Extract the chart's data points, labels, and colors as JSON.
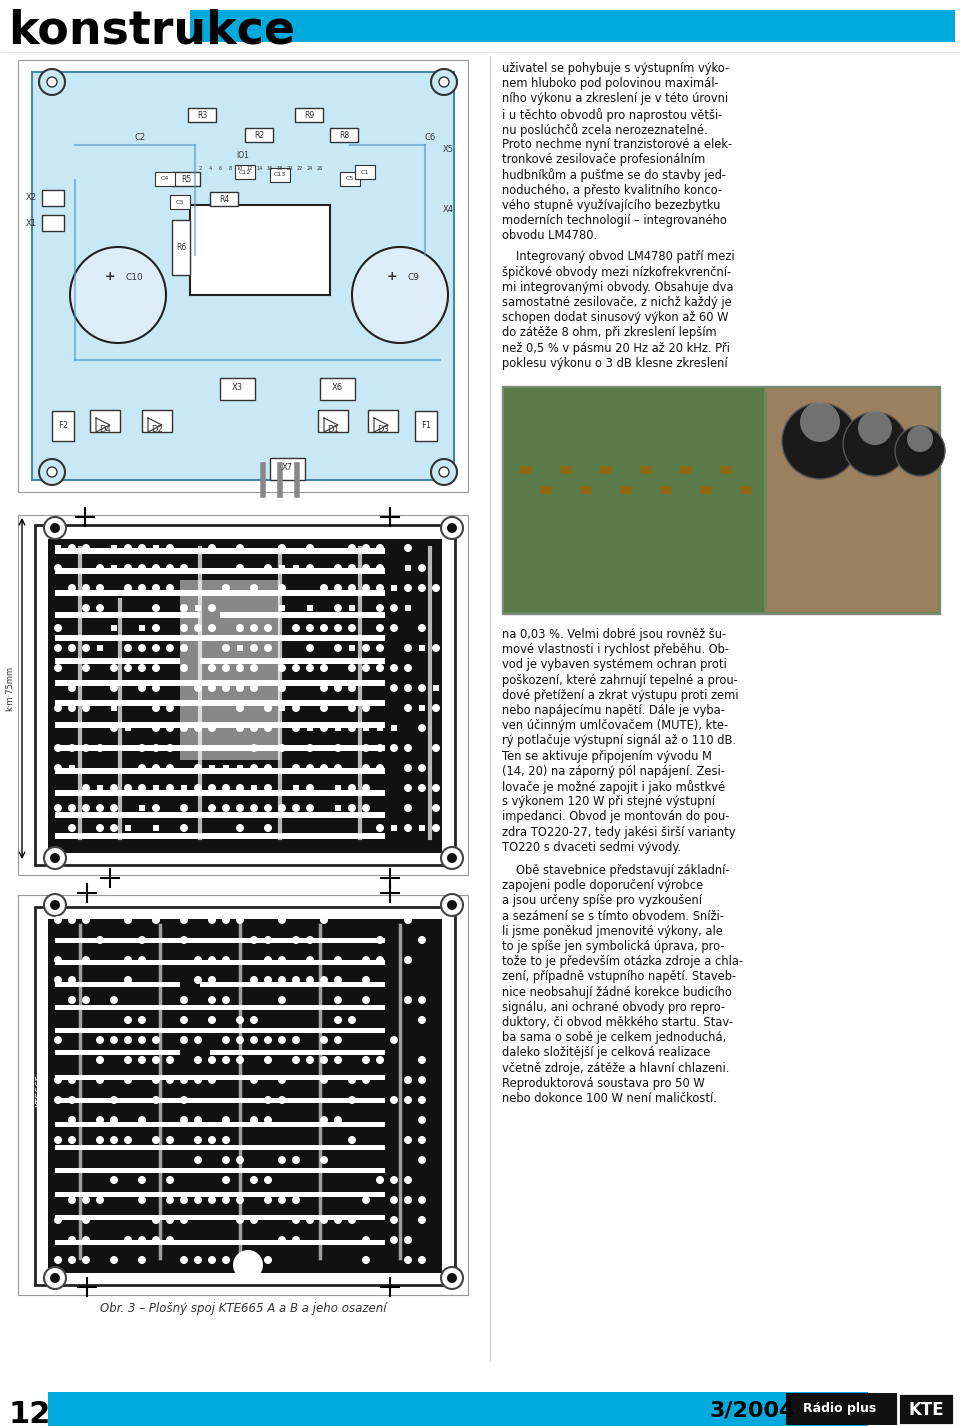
{
  "page_width": 9.6,
  "page_height": 14.26,
  "bg_color": "#ffffff",
  "header_bar_color": "#00aadd",
  "header_text": "konstrukce",
  "header_text_color": "#000000",
  "footer_bar_color": "#00aadd",
  "footer_left_num": "12",
  "footer_right_date": "3/2004",
  "footer_brand1": "Rádio plus",
  "footer_brand2": "KTE",
  "right_text_top": [
    "uživatel se pohybuje s výstupním výko-",
    "nem hluboko pod polovinou maximál-",
    "ního výkonu a zkreslení je v této úrovni",
    "i u těchto obvodů pro naprostou větši-",
    "nu poslúchčů zcela nerozeznatelné.",
    "Proto nechme nyní tranzistorové a elek-",
    "tronkové zesilovače profesionálním",
    "hudbníkům a pušťme se do stavby jed-",
    "noduchého, a přesto kvalitního konco-",
    "vého stupně využívajícího bezezbytku",
    "moderních technologií – integrovaného",
    "obvodu LM4780."
  ],
  "right_text_mid": [
    "Integrovaný obvod LM4780 patří mezi",
    "špičkové obvody mezi nízkofrekvrenční-",
    "mi integrovanými obvody. Obsahuje dva",
    "samostatné zesilovače, z nichž každý je",
    "schopen dodat sinusový výkon až 60 W",
    "do zátěže 8 ohm, při zkreslení lepším",
    "než 0,5 % v pásmu 20 Hz až 20 kHz. Při",
    "poklesu výkonu o 3 dB klesne zkreslení"
  ],
  "right_text_photo_below": [
    "na 0,03 %. Velmi dobré jsou rovněž šu-",
    "mové vlastnosti i rychlost přeběhu. Ob-",
    "vod je vybaven systémem ochran proti",
    "poškození, které zahrnují tepelné a prou-",
    "dové přetížení a zkrat výstupu proti zemi",
    "nebo napájecímu napětí. Dále je vyba-",
    "ven účinným umlčovačem (MUTE), kte-",
    "rý potlačuje výstupní signál až o 110 dB.",
    "Ten se aktivuje připojením vývodu M",
    "(14, 20) na záporný pól napájení. Zesi-",
    "lovače je možné zapojit i jako můstkvé",
    "s výkonem 120 W při stejné výstupní",
    "impedanci. Obvod je montován do pou-",
    "zdra TO220-27, tedy jakési širší varianty",
    "TO220 s dvaceti sedmi vývody."
  ],
  "right_text_bottom": [
    "Obě stavebnice představují základní-",
    "zapojeni podle doporučení výrobce",
    "a jsou určeny spíše pro vyzkoušení",
    "a sezámení se s tímto obvodem. Sníži-",
    "li jsme poněkud jmenovité výkony, ale",
    "to je spíše jen symbolická úprava, pro-",
    "tože to je především otázka zdroje a chla-",
    "zení, případně vstupního napětí. Staveb-",
    "nice neobsahují žádné korekce budicího",
    "signálu, ani ochrané obvody pro repro-",
    "duktory, či obvod měkkého startu. Stav-",
    "ba sama o sobě je celkem jednoduchá,",
    "daleko složitější je celková realizace",
    "včetně zdroje, zátěže a hlavní chlazeni.",
    "Reproduktorová soustava pro 50 W",
    "nebo dokonce 100 W není maličkostí."
  ],
  "caption_text": "Obr. 3 – Plošný spoj KTE665 A a B a jeho osazení",
  "divider_color": "#cccccc"
}
